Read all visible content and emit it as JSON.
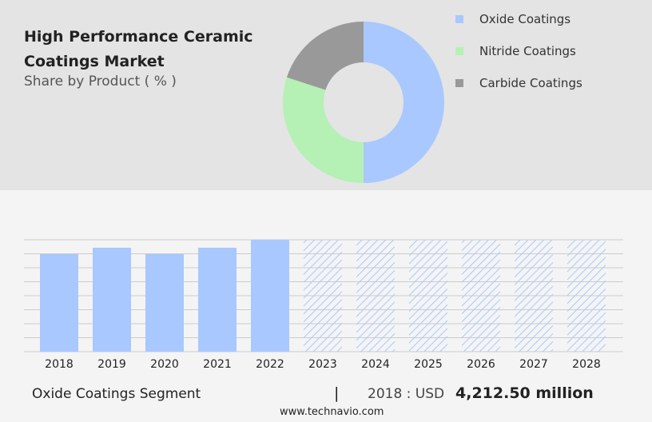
{
  "chart_data": [
    {
      "type": "donut",
      "title": "High Performance Ceramic Coatings Market",
      "subtitle": "Share by Product ( % )",
      "categories": [
        "Oxide Coatings",
        "Nitride Coatings",
        "Carbide Coatings"
      ],
      "values": [
        50,
        30,
        20
      ],
      "colors": [
        "#a8c8ff",
        "#b5f0b5",
        "#999999"
      ]
    },
    {
      "type": "bar",
      "categories": [
        "2018",
        "2019",
        "2020",
        "2021",
        "2022",
        "2023",
        "2024",
        "2025",
        "2026",
        "2027",
        "2028"
      ],
      "values": [
        4212.5,
        4489,
        4212,
        4489,
        4832,
        null,
        null,
        null,
        null,
        null,
        null
      ],
      "color": "#a8c8ff",
      "ylim": [
        0,
        4832
      ],
      "yticks": [
        0,
        604,
        1208,
        1812,
        2416,
        3020,
        3624,
        4228,
        4832
      ],
      "grid": true
    }
  ],
  "footer": {
    "segment": "Oxide Coatings Segment",
    "separator": "|",
    "year_label": "2018 : USD",
    "value_label": "4,212.50 million",
    "source": "www.technavio.com"
  }
}
